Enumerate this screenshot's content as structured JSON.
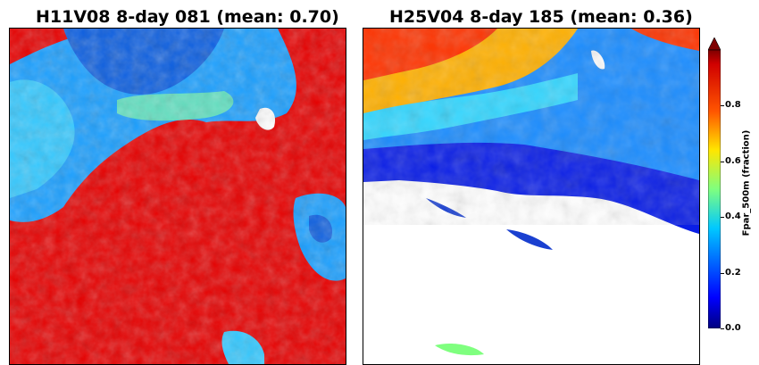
{
  "panels": [
    {
      "title": "H11V08 8-day 081 (mean: 0.70)"
    },
    {
      "title": "H25V04 8-day 185 (mean: 0.36)"
    }
  ],
  "colorbar": {
    "label": "Fpar_500m (fraction)",
    "ticks": [
      "0.0",
      "0.2",
      "0.4",
      "0.6",
      "0.8"
    ],
    "tick_values": [
      0.0,
      0.2,
      0.4,
      0.6,
      0.8
    ],
    "range": [
      0.0,
      1.0
    ],
    "colormap": "jet",
    "extend": "max",
    "colors": [
      "#00007f",
      "#0000ff",
      "#007fff",
      "#00ffff",
      "#7fff7f",
      "#ffff00",
      "#ff7f00",
      "#ff0000",
      "#7f0000"
    ]
  }
}
